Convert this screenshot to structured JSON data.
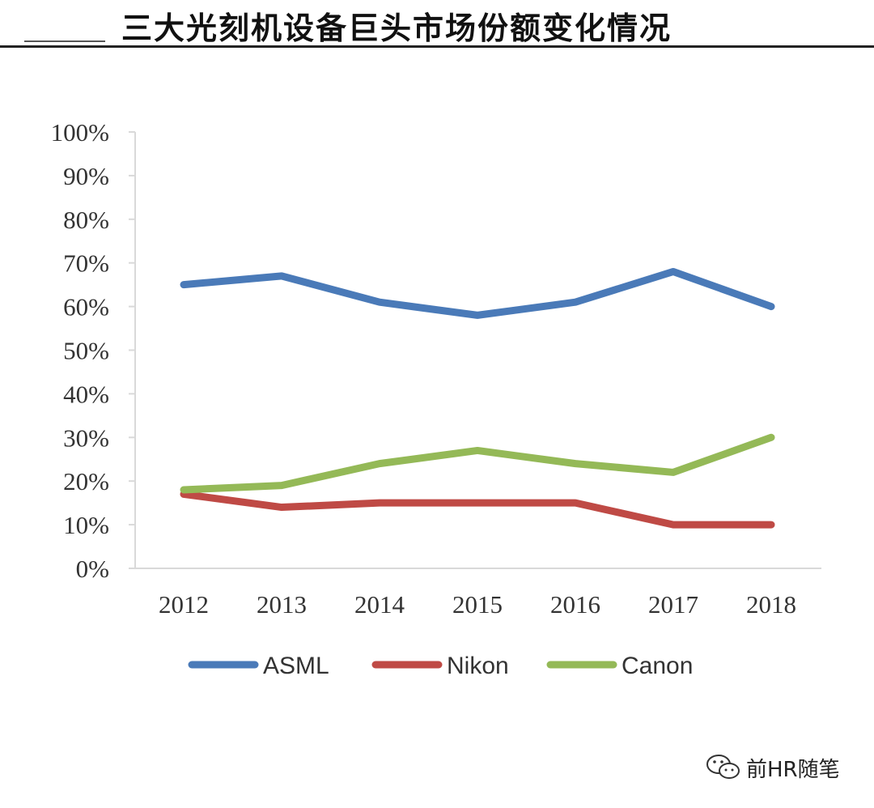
{
  "header": {
    "title": "三大光刻机设备巨头市场份额变化情况"
  },
  "chart_data": {
    "type": "line",
    "title": "三大光刻机设备巨头市场份额变化情况",
    "xlabel": "",
    "ylabel": "",
    "categories": [
      "2012",
      "2013",
      "2014",
      "2015",
      "2016",
      "2017",
      "2018"
    ],
    "ylim": [
      0,
      100
    ],
    "y_ticks": [
      0,
      10,
      20,
      30,
      40,
      50,
      60,
      70,
      80,
      90,
      100
    ],
    "y_tick_labels": [
      "0%",
      "10%",
      "20%",
      "30%",
      "40%",
      "50%",
      "60%",
      "70%",
      "80%",
      "90%",
      "100%"
    ],
    "grid": false,
    "legend_position": "bottom",
    "series": [
      {
        "name": "ASML",
        "color": "#4a7ab8",
        "values": [
          65,
          67,
          61,
          58,
          61,
          68,
          60
        ]
      },
      {
        "name": "Nikon",
        "color": "#bf4a45",
        "values": [
          17,
          14,
          15,
          15,
          15,
          10,
          10
        ]
      },
      {
        "name": "Canon",
        "color": "#94b957",
        "values": [
          18,
          19,
          24,
          27,
          24,
          22,
          30
        ]
      }
    ]
  },
  "watermark": {
    "icon": "wechat-icon",
    "text": "前HR随笔"
  }
}
